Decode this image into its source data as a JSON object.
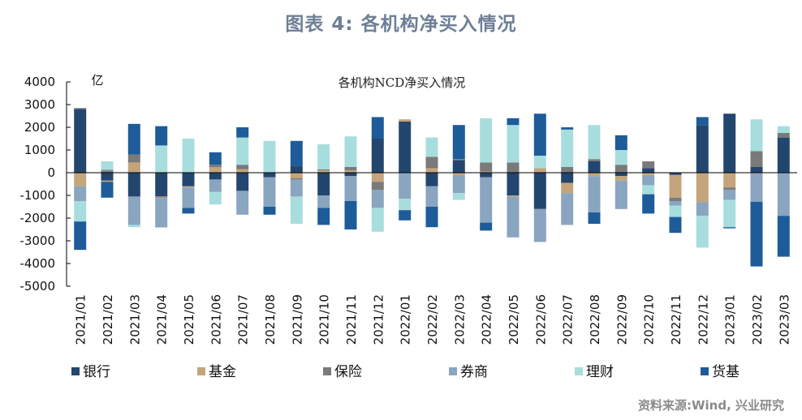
{
  "figure_title": "图表 4:  各机构净买入情况",
  "source": "资料来源:Wind, 兴业研究",
  "chart_data": {
    "type": "bar",
    "stacked": true,
    "title": "各机构NCD净买入情况",
    "unit_label": "亿",
    "ylim": [
      -5000,
      4000
    ],
    "yticks": [
      4000,
      3000,
      2000,
      1000,
      0,
      -1000,
      -2000,
      -3000,
      -4000,
      -5000
    ],
    "grid": false,
    "legend_position": "bottom",
    "categories": [
      "2021/01",
      "2021/02",
      "2021/03",
      "2021/04",
      "2021/05",
      "2021/06",
      "2021/07",
      "2021/08",
      "2021/09",
      "2021/10",
      "2021/11",
      "2021/12",
      "2022/01",
      "2022/02",
      "2022/03",
      "2022/04",
      "2022/05",
      "2022/06",
      "2022/07",
      "2022/08",
      "2022/09",
      "2022/10",
      "2022/11",
      "2022/12",
      "2023/01",
      "2023/02",
      "2023/03"
    ],
    "series": [
      {
        "name": "银行",
        "color": "#23466f",
        "values": [
          2800,
          -350,
          -1050,
          -1050,
          -600,
          -300,
          -800,
          -200,
          300,
          -1000,
          -150,
          1500,
          2250,
          -600,
          550,
          -200,
          -1000,
          -1600,
          -450,
          500,
          -150,
          200,
          -100,
          2100,
          2600,
          250,
          1550
        ]
      },
      {
        "name": "基金",
        "color": "#c4a47a",
        "values": [
          -600,
          -50,
          450,
          -30,
          -50,
          250,
          150,
          0,
          -250,
          100,
          100,
          -400,
          100,
          200,
          -100,
          50,
          -50,
          200,
          -450,
          -150,
          -200,
          -100,
          -1000,
          -1300,
          -650,
          -30,
          0
        ]
      },
      {
        "name": "保险",
        "color": "#7a7a7a",
        "values": [
          50,
          100,
          350,
          -30,
          0,
          100,
          200,
          0,
          -50,
          50,
          150,
          -350,
          0,
          500,
          50,
          400,
          450,
          0,
          250,
          100,
          350,
          300,
          -150,
          0,
          -100,
          700,
          200
        ]
      },
      {
        "name": "券商",
        "color": "#8aa5bf",
        "values": [
          -650,
          50,
          -1250,
          -1300,
          -900,
          -550,
          -1050,
          -1300,
          -750,
          -550,
          -1100,
          -800,
          -1150,
          -900,
          -800,
          -2000,
          -1800,
          -1450,
          -1400,
          -1600,
          -1250,
          -450,
          -200,
          -600,
          -450,
          -1250,
          -1900
        ]
      },
      {
        "name": "理财",
        "color": "#a8dddd",
        "values": [
          -900,
          350,
          -100,
          1200,
          1500,
          -550,
          1200,
          1400,
          -1200,
          1100,
          1350,
          -1050,
          -500,
          850,
          -300,
          1950,
          1650,
          550,
          1650,
          1500,
          650,
          -400,
          -500,
          -1400,
          -1200,
          1400,
          300
        ]
      },
      {
        "name": "货基",
        "color": "#1d5c99",
        "values": [
          -1250,
          -700,
          1350,
          850,
          -250,
          550,
          450,
          -350,
          1100,
          -750,
          -1250,
          950,
          -450,
          -900,
          1500,
          -350,
          300,
          1850,
          100,
          -500,
          650,
          -850,
          -700,
          350,
          -50,
          -2850,
          -1800
        ]
      }
    ]
  }
}
